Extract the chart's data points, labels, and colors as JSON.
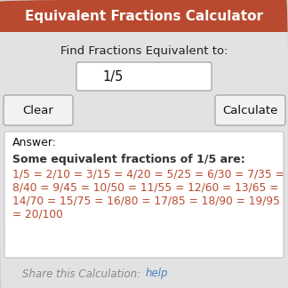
{
  "title": "Equivalent Fractions Calculator",
  "title_bg_color": "#b94a30",
  "title_text_color": "#ffffff",
  "bg_color": "#e2e2e2",
  "subtitle": "Find Fractions Equivalent to:",
  "input_value": "1/5",
  "btn_clear": "Clear",
  "btn_calculate": "Calculate",
  "answer_label": "Answer:",
  "answer_bold_line": "Some equivalent fractions of 1/5 are:",
  "answer_lines": [
    "1/5 = 2/10 = 3/15 = 4/20 = 5/25 = 6/30 = 7/35 =",
    "8/40 = 9/45 = 10/50 = 11/55 = 12/60 = 13/65 =",
    "14/70 = 15/75 = 16/80 = 17/85 = 18/90 = 19/95",
    "= 20/100"
  ],
  "answer_text_color": "#b94a30",
  "share_text": "Share this Calculation: ",
  "share_link": "help",
  "share_link_color": "#4a7fc1",
  "share_text_color": "#888888"
}
